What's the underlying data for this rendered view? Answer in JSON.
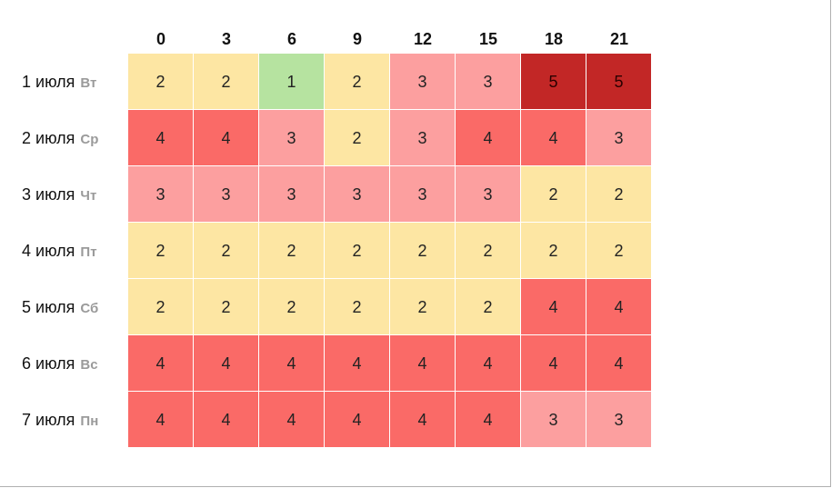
{
  "chart_data": {
    "type": "heatmap",
    "x_labels": [
      "0",
      "3",
      "6",
      "9",
      "12",
      "15",
      "18",
      "21"
    ],
    "rows": [
      {
        "date": "1 июля",
        "dow": "Вт",
        "values": [
          2,
          2,
          1,
          2,
          3,
          3,
          5,
          5
        ]
      },
      {
        "date": "2 июля",
        "dow": "Ср",
        "values": [
          4,
          4,
          3,
          2,
          3,
          4,
          4,
          3
        ]
      },
      {
        "date": "3 июля",
        "dow": "Чт",
        "values": [
          3,
          3,
          3,
          3,
          3,
          3,
          2,
          2
        ]
      },
      {
        "date": "4 июля",
        "dow": "Пт",
        "values": [
          2,
          2,
          2,
          2,
          2,
          2,
          2,
          2
        ]
      },
      {
        "date": "5 июля",
        "dow": "Сб",
        "values": [
          2,
          2,
          2,
          2,
          2,
          2,
          4,
          4
        ]
      },
      {
        "date": "6 июля",
        "dow": "Вс",
        "values": [
          4,
          4,
          4,
          4,
          4,
          4,
          4,
          4
        ]
      },
      {
        "date": "7 июля",
        "dow": "Пн",
        "values": [
          4,
          4,
          4,
          4,
          4,
          4,
          3,
          3
        ]
      }
    ],
    "color_scale": {
      "1": "#b6e3a0",
      "2": "#fde6a3",
      "3": "#fc9f9f",
      "4": "#fa6a67",
      "5": "#c22726"
    }
  }
}
